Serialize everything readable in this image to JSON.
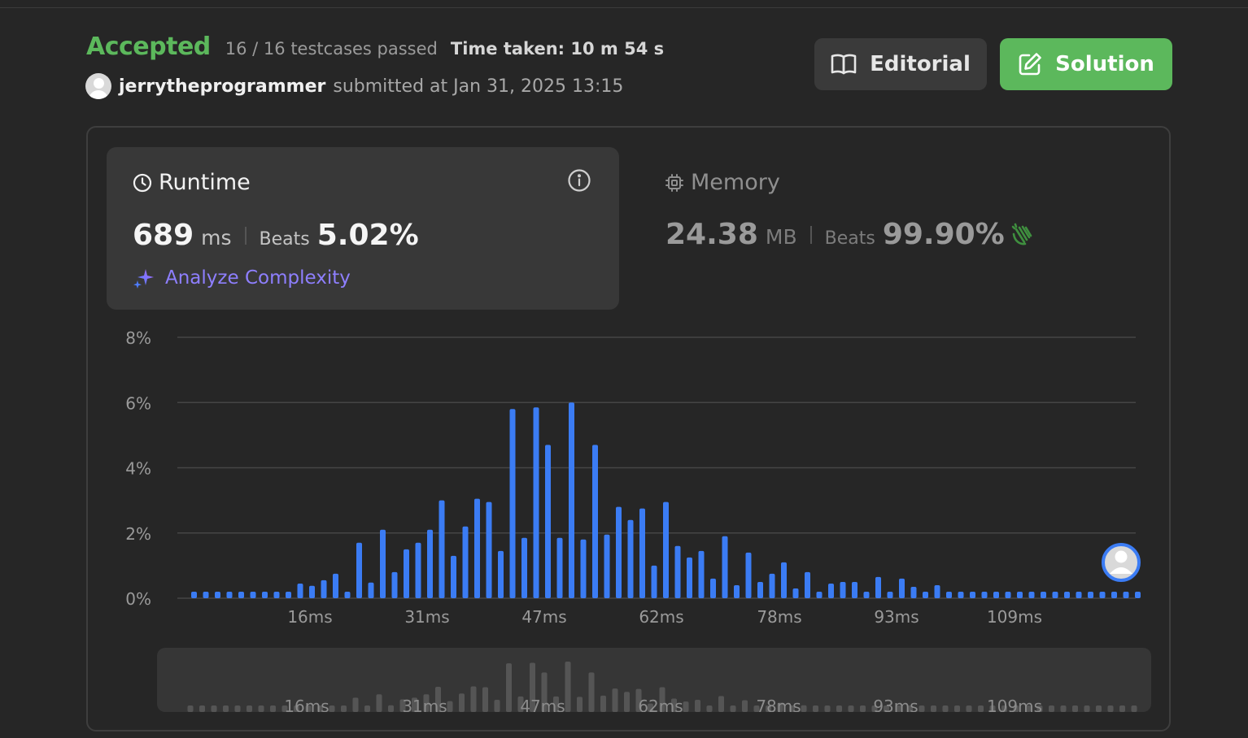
{
  "header": {
    "status": "Accepted",
    "testcases": "16 / 16 testcases passed",
    "time_taken": "Time taken: 10 m 54 s",
    "username": "jerrytheprogrammer",
    "submitted": "submitted at Jan 31, 2025 13:15"
  },
  "buttons": {
    "editorial": "Editorial",
    "solution": "Solution"
  },
  "runtime": {
    "title": "Runtime",
    "value": "689",
    "unit": "ms",
    "beats_label": "Beats",
    "beats": "5.02%",
    "analyze": "Analyze Complexity"
  },
  "memory": {
    "title": "Memory",
    "value": "24.38",
    "unit": "MB",
    "beats_label": "Beats",
    "beats": "99.90%"
  },
  "colors": {
    "accepted": "#5cb85c",
    "bar": "#3b7cf4",
    "overview_bar": "#555555",
    "grid": "#454545",
    "analyze": "#8e7fff"
  },
  "chart_data": {
    "type": "bar",
    "title": "",
    "xlabel": "",
    "ylabel": "",
    "y_ticks": [
      "8%",
      "6%",
      "4%",
      "2%",
      "0%"
    ],
    "y_tick_values": [
      8,
      6,
      4,
      2,
      0
    ],
    "ylim": [
      0,
      8
    ],
    "x_ticks": [
      "16ms",
      "31ms",
      "47ms",
      "62ms",
      "78ms",
      "93ms",
      "109ms"
    ],
    "grid": true,
    "values": [
      0.2,
      0.2,
      0.2,
      0.2,
      0.2,
      0.2,
      0.2,
      0.2,
      0.2,
      0.45,
      0.38,
      0.55,
      0.75,
      0.2,
      1.7,
      0.48,
      2.1,
      0.8,
      1.5,
      1.7,
      2.1,
      3.0,
      1.3,
      2.2,
      3.05,
      2.95,
      1.45,
      5.8,
      1.85,
      5.85,
      4.7,
      1.85,
      6.0,
      1.8,
      4.7,
      1.95,
      2.8,
      2.4,
      2.75,
      1.0,
      2.95,
      1.6,
      1.25,
      1.45,
      0.6,
      1.9,
      0.4,
      1.4,
      0.5,
      0.75,
      1.1,
      0.3,
      0.8,
      0.2,
      0.45,
      0.5,
      0.5,
      0.2,
      0.65,
      0.2,
      0.6,
      0.35,
      0.2,
      0.4,
      0.2,
      0.2,
      0.2,
      0.2,
      0.2,
      0.2,
      0.2,
      0.2,
      0.2,
      0.2,
      0.2,
      0.2,
      0.2,
      0.2,
      0.2,
      0.2,
      0.2
    ],
    "highlight_marker": "user-avatar"
  }
}
